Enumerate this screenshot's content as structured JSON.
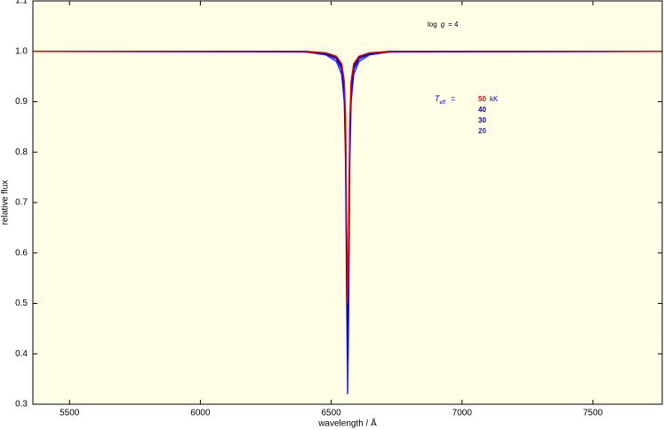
{
  "chart_data": {
    "type": "line",
    "xlabel": "wavelength / Å",
    "ylabel": "relative flux",
    "annotation": [
      "log",
      "g",
      "= 4"
    ],
    "legend_title": [
      "T",
      "eff",
      "="
    ],
    "legend_unit": "kK",
    "x": [
      5360,
      6400,
      6480,
      6520,
      6540,
      6550,
      6555,
      6559,
      6563,
      6567,
      6571,
      6576,
      6586,
      6606,
      6646,
      6726,
      7765
    ],
    "series": [
      {
        "name": "50",
        "color": "#e00000",
        "values": [
          1.0,
          1.0,
          0.997,
          0.99,
          0.975,
          0.94,
          0.86,
          0.65,
          0.5,
          0.65,
          0.86,
          0.94,
          0.975,
          0.99,
          0.997,
          1.0,
          1.0
        ]
      },
      {
        "name": "40",
        "color": "#0000b0",
        "values": [
          1.0,
          1.0,
          0.996,
          0.988,
          0.97,
          0.93,
          0.84,
          0.62,
          0.45,
          0.62,
          0.84,
          0.93,
          0.97,
          0.988,
          0.996,
          1.0,
          1.0
        ]
      },
      {
        "name": "30",
        "color": "#0000d8",
        "values": [
          1.0,
          0.999,
          0.995,
          0.985,
          0.965,
          0.92,
          0.82,
          0.58,
          0.39,
          0.58,
          0.82,
          0.92,
          0.965,
          0.985,
          0.995,
          0.999,
          1.0
        ]
      },
      {
        "name": "20",
        "color": "#2020ff",
        "values": [
          1.0,
          0.999,
          0.993,
          0.98,
          0.955,
          0.9,
          0.78,
          0.52,
          0.32,
          0.52,
          0.78,
          0.9,
          0.955,
          0.98,
          0.993,
          0.999,
          1.0
        ]
      }
    ],
    "xlim": [
      5360,
      7765
    ],
    "ylim": [
      0.3,
      1.1
    ],
    "xticks": [
      5500,
      6000,
      6500,
      7000,
      7500
    ],
    "yticks": [
      0.3,
      0.4,
      0.5,
      0.6,
      0.7,
      0.8,
      0.9,
      {
        "value": 1.0,
        "label": "1.0"
      },
      1.1
    ],
    "background": "#fffde6"
  }
}
